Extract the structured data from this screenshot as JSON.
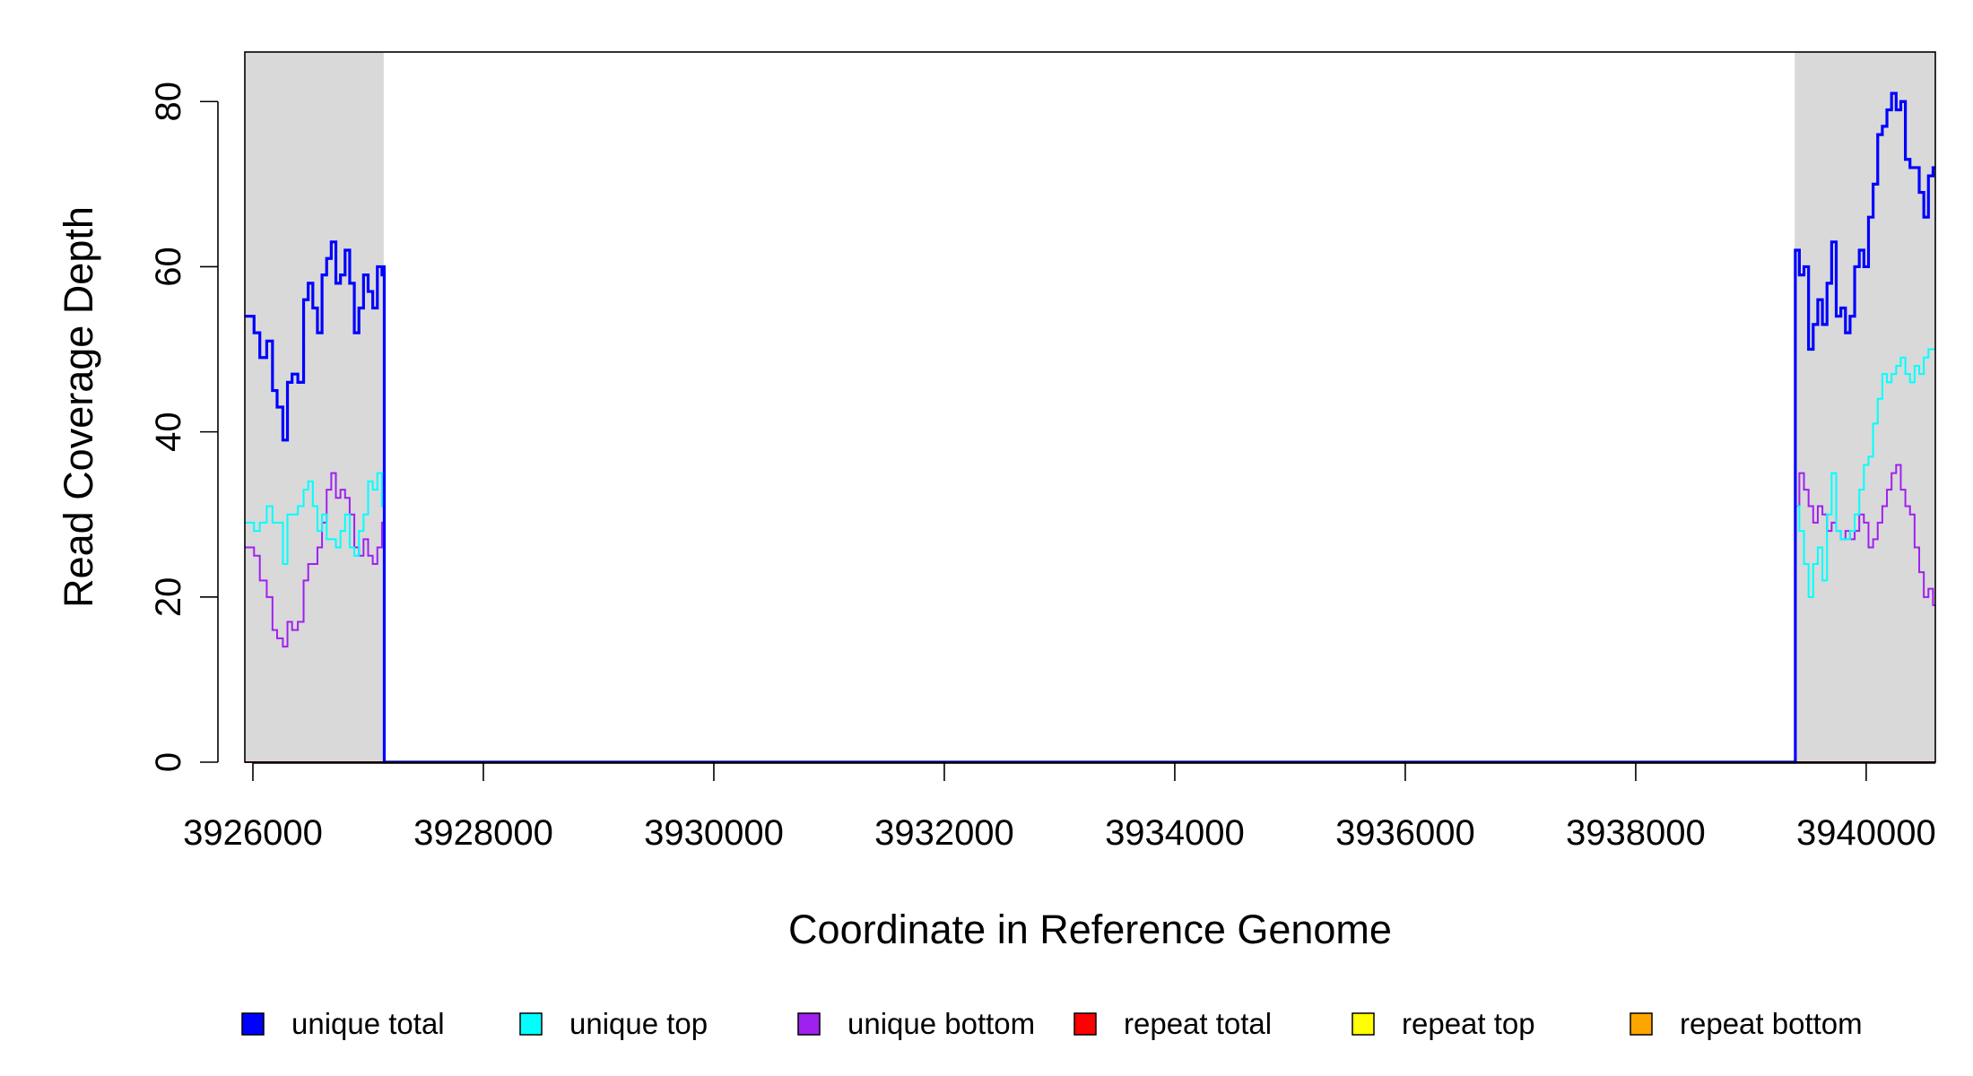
{
  "chart_data": {
    "type": "line",
    "title": "",
    "xlabel": "Coordinate in Reference Genome",
    "ylabel": "Read Coverage Depth",
    "xlim": [
      3925930,
      3940600
    ],
    "ylim": [
      0,
      86
    ],
    "x_ticks": [
      3926000,
      3928000,
      3930000,
      3932000,
      3934000,
      3936000,
      3938000,
      3940000
    ],
    "x_tick_labels": [
      "3926000",
      "3928000",
      "3930000",
      "3932000",
      "3934000",
      "3936000",
      "3938000",
      "3940000"
    ],
    "y_ticks": [
      0,
      20,
      40,
      60,
      80
    ],
    "y_tick_labels": [
      "0",
      "20",
      "40",
      "60",
      "80"
    ],
    "grid": false,
    "shaded_regions": [
      {
        "x0": 3925930,
        "x1": 3927135,
        "color": "#d9d9d9"
      },
      {
        "x0": 3939380,
        "x1": 3940600,
        "color": "#d9d9d9"
      }
    ],
    "legend_position": "bottom",
    "series": [
      {
        "name": "unique total",
        "color": "#0000ff",
        "x": [
          3925930,
          3926010,
          3926060,
          3926120,
          3926170,
          3926210,
          3926260,
          3926300,
          3926340,
          3926390,
          3926440,
          3926480,
          3926520,
          3926560,
          3926600,
          3926640,
          3926680,
          3926720,
          3926760,
          3926800,
          3926840,
          3926880,
          3926920,
          3926960,
          3927000,
          3927040,
          3927080,
          3927120,
          3927135,
          3927140,
          3939380,
          3939385,
          3939420,
          3939460,
          3939500,
          3939540,
          3939580,
          3939620,
          3939660,
          3939700,
          3939740,
          3939780,
          3939820,
          3939860,
          3939900,
          3939940,
          3939980,
          3940020,
          3940060,
          3940100,
          3940140,
          3940180,
          3940220,
          3940260,
          3940300,
          3940340,
          3940380,
          3940420,
          3940460,
          3940500,
          3940540,
          3940580,
          3940600
        ],
        "y": [
          54,
          52,
          49,
          51,
          45,
          43,
          39,
          46,
          47,
          46,
          56,
          58,
          55,
          52,
          59,
          61,
          63,
          58,
          59,
          62,
          58,
          52,
          55,
          59,
          57,
          55,
          60,
          59,
          60,
          0,
          0,
          62,
          59,
          60,
          50,
          53,
          56,
          53,
          58,
          63,
          54,
          55,
          52,
          54,
          60,
          62,
          60,
          66,
          70,
          76,
          77,
          79,
          81,
          79,
          80,
          73,
          72,
          72,
          69,
          66,
          71,
          72,
          72
        ]
      },
      {
        "name": "unique top",
        "color": "#00ffff",
        "x": [
          3925930,
          3926010,
          3926060,
          3926120,
          3926170,
          3926210,
          3926260,
          3926300,
          3926340,
          3926390,
          3926440,
          3926480,
          3926520,
          3926560,
          3926600,
          3926640,
          3926680,
          3926720,
          3926760,
          3926800,
          3926840,
          3926880,
          3926920,
          3926960,
          3927000,
          3927040,
          3927080,
          3927120,
          3927135,
          3927140,
          3939380,
          3939385,
          3939420,
          3939460,
          3939500,
          3939540,
          3939580,
          3939620,
          3939660,
          3939700,
          3939740,
          3939780,
          3939820,
          3939860,
          3939900,
          3939940,
          3939980,
          3940020,
          3940060,
          3940100,
          3940140,
          3940180,
          3940220,
          3940260,
          3940300,
          3940340,
          3940380,
          3940420,
          3940460,
          3940500,
          3940540,
          3940580,
          3940600
        ],
        "y": [
          29,
          28,
          29,
          31,
          29,
          29,
          24,
          30,
          30,
          31,
          33,
          34,
          31,
          28,
          30,
          27,
          27,
          26,
          28,
          30,
          26,
          25,
          28,
          30,
          34,
          33,
          35,
          31,
          31,
          0,
          0,
          31,
          28,
          24,
          20,
          24,
          26,
          22,
          30,
          35,
          28,
          27,
          27,
          28,
          30,
          33,
          36,
          37,
          41,
          44,
          47,
          46,
          47,
          48,
          49,
          47,
          46,
          48,
          47,
          49,
          50,
          50,
          50
        ]
      },
      {
        "name": "unique bottom",
        "color": "#a020f0",
        "x": [
          3925930,
          3926010,
          3926060,
          3926120,
          3926170,
          3926210,
          3926260,
          3926300,
          3926340,
          3926390,
          3926440,
          3926480,
          3926520,
          3926560,
          3926600,
          3926640,
          3926680,
          3926720,
          3926760,
          3926800,
          3926840,
          3926880,
          3926920,
          3926960,
          3927000,
          3927040,
          3927080,
          3927120,
          3927135,
          3927140,
          3939380,
          3939385,
          3939420,
          3939460,
          3939500,
          3939540,
          3939580,
          3939620,
          3939660,
          3939700,
          3939740,
          3939780,
          3939820,
          3939860,
          3939900,
          3939940,
          3939980,
          3940020,
          3940060,
          3940100,
          3940140,
          3940180,
          3940220,
          3940260,
          3940300,
          3940340,
          3940380,
          3940420,
          3940460,
          3940500,
          3940540,
          3940580,
          3940600
        ],
        "y": [
          26,
          25,
          22,
          20,
          16,
          15,
          14,
          17,
          16,
          17,
          22,
          24,
          24,
          26,
          29,
          33,
          35,
          32,
          33,
          32,
          30,
          26,
          25,
          27,
          25,
          24,
          26,
          29,
          29,
          0,
          0,
          31,
          35,
          33,
          31,
          29,
          31,
          30,
          28,
          29,
          28,
          27,
          28,
          27,
          28,
          30,
          29,
          26,
          27,
          29,
          31,
          33,
          35,
          36,
          33,
          31,
          30,
          26,
          23,
          20,
          21,
          19,
          19
        ]
      },
      {
        "name": "repeat total",
        "color": "#ff0000",
        "x": [
          3925930,
          3940600
        ],
        "y": [
          0,
          0
        ]
      },
      {
        "name": "repeat top",
        "color": "#ffff00",
        "x": [
          3925930,
          3940600
        ],
        "y": [
          0,
          0
        ]
      },
      {
        "name": "repeat bottom",
        "color": "#ffa500",
        "x": [
          3925930,
          3940600
        ],
        "y": [
          0,
          0
        ]
      }
    ]
  },
  "legend": {
    "items": [
      {
        "label": "unique total",
        "color": "#0000ff"
      },
      {
        "label": "unique top",
        "color": "#00ffff"
      },
      {
        "label": "unique bottom",
        "color": "#a020f0"
      },
      {
        "label": "repeat total",
        "color": "#ff0000"
      },
      {
        "label": "repeat top",
        "color": "#ffff00"
      },
      {
        "label": "repeat bottom",
        "color": "#ffa500"
      }
    ]
  }
}
